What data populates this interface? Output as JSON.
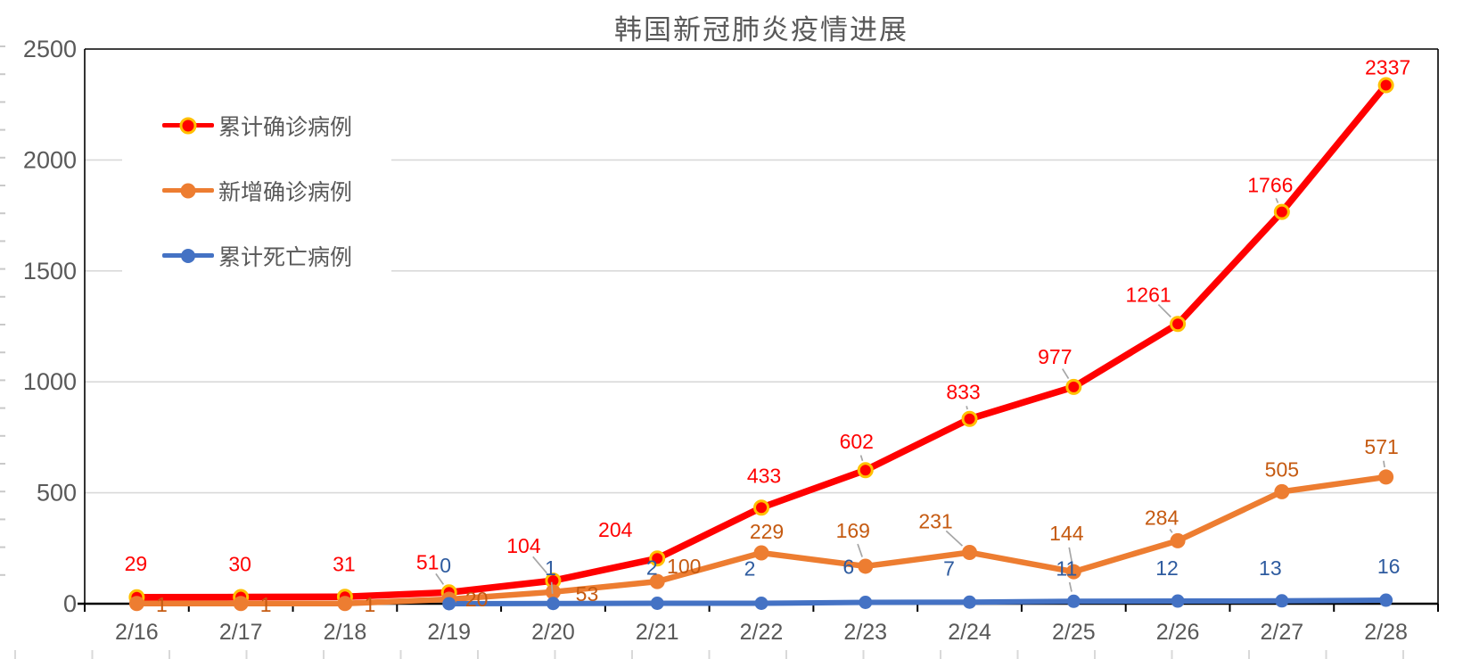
{
  "chart_data": {
    "type": "line",
    "title": "韩国新冠肺炎疫情进展",
    "categories": [
      "2/16",
      "2/17",
      "2/18",
      "2/19",
      "2/20",
      "2/21",
      "2/22",
      "2/23",
      "2/24",
      "2/25",
      "2/26",
      "2/27",
      "2/28"
    ],
    "ylim": [
      0,
      2500
    ],
    "y_ticks": [
      "0",
      "500",
      "1000",
      "1500",
      "2000",
      "2500"
    ],
    "grid": true,
    "legend_position": "top-left-inside",
    "colors": {
      "axis_text": "#595959",
      "gridline": "#d9d9d9",
      "axis_line": "#000000",
      "leader_line": "#a6a6a6",
      "red_marker_ring": "#ffc000"
    },
    "series": [
      {
        "name": "累计确诊病例",
        "color": "#ff0000",
        "label_color": "#ff0000",
        "marker_ring": "#ffc000",
        "values": [
          29,
          30,
          31,
          51,
          104,
          204,
          433,
          602,
          833,
          977,
          1261,
          1766,
          2337
        ],
        "label_offsets": [
          [
            -1,
            -38,
            0
          ],
          [
            -1,
            -37,
            0
          ],
          [
            -1,
            -37,
            0
          ],
          [
            -24,
            -34,
            1
          ],
          [
            -33,
            -39,
            1
          ],
          [
            -47,
            -32,
            0
          ],
          [
            3,
            -36,
            0
          ],
          [
            -10,
            -32,
            1
          ],
          [
            -7,
            -30,
            1
          ],
          [
            -21,
            -34,
            1
          ],
          [
            -33,
            -33,
            1
          ],
          [
            -13,
            -30,
            1
          ],
          [
            2,
            -20,
            0
          ]
        ]
      },
      {
        "name": "新增确诊病例",
        "color": "#ed7d31",
        "label_color": "#c55a11",
        "marker_ring": null,
        "values": [
          1,
          1,
          1,
          20,
          53,
          100,
          229,
          169,
          231,
          144,
          284,
          505,
          571
        ],
        "label_offsets": [
          [
            28,
            1,
            0
          ],
          [
            28,
            1,
            0
          ],
          [
            28,
            1,
            0
          ],
          [
            31,
            0,
            0
          ],
          [
            38,
            2,
            0
          ],
          [
            30,
            -17,
            0
          ],
          [
            6,
            -24,
            0
          ],
          [
            -14,
            -40,
            1
          ],
          [
            -38,
            -35,
            1
          ],
          [
            -8,
            -43,
            1
          ],
          [
            -18,
            -26,
            1
          ],
          [
            0,
            -25,
            0
          ],
          [
            -5,
            -34,
            1
          ]
        ]
      },
      {
        "name": "累计死亡病例",
        "color": "#4472c4",
        "label_color": "#2e5b9f",
        "marker_ring": null,
        "values": [
          null,
          null,
          null,
          0,
          1,
          2,
          2,
          6,
          7,
          11,
          12,
          13,
          16
        ],
        "label_offsets": [
          null,
          null,
          null,
          [
            -4,
            -43,
            0
          ],
          [
            -3,
            -40,
            1
          ],
          [
            -6,
            -40,
            0
          ],
          [
            -13,
            -39,
            0
          ],
          [
            -19,
            -40,
            0
          ],
          [
            -23,
            -38,
            0
          ],
          [
            -8,
            -37,
            1
          ],
          [
            -12,
            -37,
            0
          ],
          [
            -13,
            -37,
            0
          ],
          [
            3,
            -38,
            0
          ]
        ]
      }
    ]
  }
}
